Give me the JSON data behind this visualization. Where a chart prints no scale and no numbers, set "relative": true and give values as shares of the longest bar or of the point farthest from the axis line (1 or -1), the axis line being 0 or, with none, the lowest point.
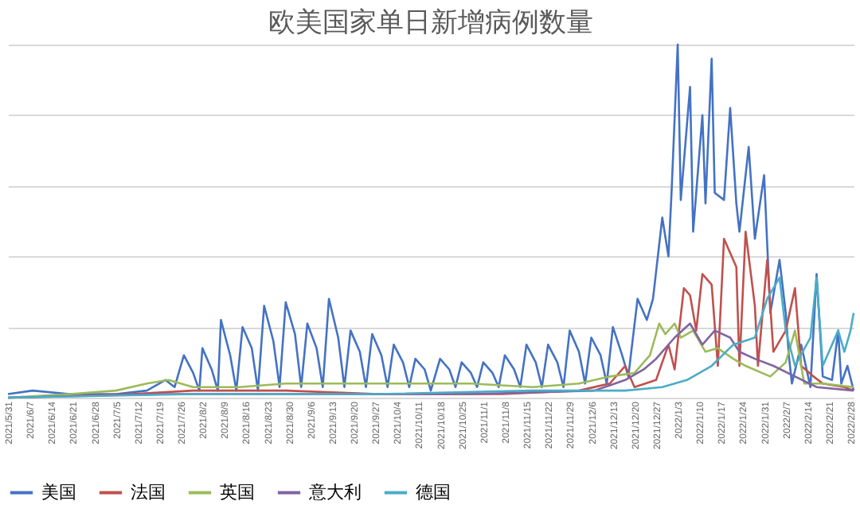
{
  "chart_data": {
    "type": "line",
    "title": "欧美国家单日新增病例数量",
    "relative": true,
    "grid": "y",
    "legend": "bottom",
    "marker": "none",
    "line_style": "solid",
    "xlim": [
      "2021-05-31",
      "2022-03-01"
    ],
    "xticks": [
      {
        "value": "2021-05-31",
        "label": "2021/5/31"
      },
      {
        "value": "2021-06-07",
        "label": "2021/6/7"
      },
      {
        "value": "2021-06-14",
        "label": "2021/6/14"
      },
      {
        "value": "2021-06-21",
        "label": "2021/6/21"
      },
      {
        "value": "2021-06-28",
        "label": "2021/6/28"
      },
      {
        "value": "2021-07-05",
        "label": "2021/7/5"
      },
      {
        "value": "2021-07-12",
        "label": "2021/7/12"
      },
      {
        "value": "2021-07-19",
        "label": "2021/7/19"
      },
      {
        "value": "2021-07-26",
        "label": "2021/7/26"
      },
      {
        "value": "2021-08-02",
        "label": "2021/8/2"
      },
      {
        "value": "2021-08-09",
        "label": "2021/8/9"
      },
      {
        "value": "2021-08-16",
        "label": "2021/8/16"
      },
      {
        "value": "2021-08-23",
        "label": "2021/8/23"
      },
      {
        "value": "2021-08-30",
        "label": "2021/8/30"
      },
      {
        "value": "2021-09-06",
        "label": "2021/9/6"
      },
      {
        "value": "2021-09-13",
        "label": "2021/9/13"
      },
      {
        "value": "2021-09-20",
        "label": "2021/9/20"
      },
      {
        "value": "2021-09-27",
        "label": "2021/9/27"
      },
      {
        "value": "2021-10-04",
        "label": "2021/10/4"
      },
      {
        "value": "2021-10-11",
        "label": "2021/10/11"
      },
      {
        "value": "2021-10-18",
        "label": "2021/10/18"
      },
      {
        "value": "2021-10-25",
        "label": "2021/10/25"
      },
      {
        "value": "2021-11-01",
        "label": "2021/11/1"
      },
      {
        "value": "2021-11-08",
        "label": "2021/11/8"
      },
      {
        "value": "2021-11-15",
        "label": "2021/11/15"
      },
      {
        "value": "2021-11-22",
        "label": "2021/11/22"
      },
      {
        "value": "2021-11-29",
        "label": "2021/11/29"
      },
      {
        "value": "2021-12-06",
        "label": "2021/12/6"
      },
      {
        "value": "2021-12-13",
        "label": "2021/12/13"
      },
      {
        "value": "2021-12-20",
        "label": "2021/12/20"
      },
      {
        "value": "2021-12-27",
        "label": "2021/12/27"
      },
      {
        "value": "2022-01-03",
        "label": "2022/1/3"
      },
      {
        "value": "2022-01-10",
        "label": "2022/1/10"
      },
      {
        "value": "2022-01-17",
        "label": "2022/1/17"
      },
      {
        "value": "2022-01-24",
        "label": "2022/1/24"
      },
      {
        "value": "2022-01-31",
        "label": "2022/1/31"
      },
      {
        "value": "2022-02-07",
        "label": "2022/2/7"
      },
      {
        "value": "2022-02-14",
        "label": "2022/2/14"
      },
      {
        "value": "2022-02-21",
        "label": "2022/2/21"
      },
      {
        "value": "2022-02-28",
        "label": "2022/2/28"
      }
    ],
    "series": [
      {
        "name": "美国",
        "color": "#4472c4",
        "x": [
          "2021-05-31",
          "2021-06-08",
          "2021-06-20",
          "2021-07-05",
          "2021-07-15",
          "2021-07-21",
          "2021-07-24",
          "2021-07-27",
          "2021-07-30",
          "2021-08-01",
          "2021-08-02",
          "2021-08-05",
          "2021-08-07",
          "2021-08-08",
          "2021-08-11",
          "2021-08-13",
          "2021-08-15",
          "2021-08-18",
          "2021-08-20",
          "2021-08-22",
          "2021-08-25",
          "2021-08-27",
          "2021-08-29",
          "2021-09-01",
          "2021-09-03",
          "2021-09-05",
          "2021-09-08",
          "2021-09-10",
          "2021-09-12",
          "2021-09-15",
          "2021-09-17",
          "2021-09-19",
          "2021-09-22",
          "2021-09-24",
          "2021-09-26",
          "2021-09-29",
          "2021-10-01",
          "2021-10-03",
          "2021-10-06",
          "2021-10-08",
          "2021-10-10",
          "2021-10-13",
          "2021-10-15",
          "2021-10-18",
          "2021-10-21",
          "2021-10-23",
          "2021-10-25",
          "2021-10-28",
          "2021-10-30",
          "2021-11-01",
          "2021-11-04",
          "2021-11-06",
          "2021-11-08",
          "2021-11-11",
          "2021-11-13",
          "2021-11-15",
          "2021-11-18",
          "2021-11-20",
          "2021-11-22",
          "2021-11-25",
          "2021-11-27",
          "2021-11-29",
          "2021-12-02",
          "2021-12-04",
          "2021-12-06",
          "2021-12-09",
          "2021-12-11",
          "2021-12-13",
          "2021-12-16",
          "2021-12-18",
          "2021-12-21",
          "2021-12-24",
          "2021-12-26",
          "2021-12-29",
          "2021-12-31",
          "2022-01-01",
          "2022-01-03",
          "2022-01-04",
          "2022-01-07",
          "2022-01-08",
          "2022-01-11",
          "2022-01-12",
          "2022-01-14",
          "2022-01-15",
          "2022-01-18",
          "2022-01-20",
          "2022-01-22",
          "2022-01-23",
          "2022-01-26",
          "2022-01-28",
          "2022-01-31",
          "2022-02-02",
          "2022-02-05",
          "2022-02-07",
          "2022-02-08",
          "2022-02-09",
          "2022-02-12",
          "2022-02-15",
          "2022-02-17",
          "2022-02-19",
          "2022-02-22",
          "2022-02-24",
          "2022-02-25",
          "2022-02-27",
          "2022-03-01"
        ],
        "values": [
          0.01,
          0.02,
          0.01,
          0.01,
          0.02,
          0.05,
          0.03,
          0.12,
          0.07,
          0.02,
          0.14,
          0.08,
          0.02,
          0.22,
          0.12,
          0.02,
          0.2,
          0.14,
          0.02,
          0.26,
          0.16,
          0.03,
          0.27,
          0.18,
          0.03,
          0.21,
          0.14,
          0.03,
          0.28,
          0.17,
          0.03,
          0.19,
          0.13,
          0.03,
          0.18,
          0.12,
          0.03,
          0.15,
          0.1,
          0.03,
          0.11,
          0.08,
          0.02,
          0.11,
          0.08,
          0.03,
          0.1,
          0.07,
          0.03,
          0.1,
          0.07,
          0.03,
          0.12,
          0.08,
          0.03,
          0.15,
          0.1,
          0.03,
          0.15,
          0.1,
          0.03,
          0.19,
          0.13,
          0.04,
          0.17,
          0.12,
          0.04,
          0.2,
          0.12,
          0.06,
          0.28,
          0.22,
          0.28,
          0.51,
          0.4,
          0.58,
          1.0,
          0.56,
          0.88,
          0.47,
          0.8,
          0.55,
          0.96,
          0.58,
          0.56,
          0.82,
          0.55,
          0.47,
          0.71,
          0.45,
          0.63,
          0.24,
          0.39,
          0.24,
          0.12,
          0.04,
          0.15,
          0.03,
          0.35,
          0.06,
          0.05,
          0.19,
          0.04,
          0.09,
          0.02
        ]
      },
      {
        "name": "法国",
        "color": "#c0504d",
        "x": [
          "2021-05-31",
          "2021-07-10",
          "2021-07-30",
          "2021-08-29",
          "2021-09-28",
          "2021-11-07",
          "2021-12-02",
          "2021-12-12",
          "2021-12-17",
          "2021-12-20",
          "2021-12-27",
          "2021-12-31",
          "2022-01-02",
          "2022-01-05",
          "2022-01-07",
          "2022-01-09",
          "2022-01-11",
          "2022-01-14",
          "2022-01-16",
          "2022-01-18",
          "2022-01-22",
          "2022-01-23",
          "2022-01-25",
          "2022-01-28",
          "2022-01-29",
          "2022-02-01",
          "2022-02-03",
          "2022-02-07",
          "2022-02-10",
          "2022-02-12",
          "2022-02-16",
          "2022-02-19",
          "2022-02-26",
          "2022-03-01"
        ],
        "values": [
          0.0,
          0.01,
          0.02,
          0.02,
          0.01,
          0.01,
          0.02,
          0.04,
          0.09,
          0.03,
          0.05,
          0.15,
          0.08,
          0.31,
          0.29,
          0.19,
          0.35,
          0.32,
          0.09,
          0.45,
          0.37,
          0.09,
          0.47,
          0.26,
          0.09,
          0.39,
          0.13,
          0.19,
          0.31,
          0.09,
          0.06,
          0.04,
          0.03,
          0.02
        ]
      },
      {
        "name": "英国",
        "color": "#9bbb59",
        "x": [
          "2021-05-31",
          "2021-06-20",
          "2021-07-05",
          "2021-07-15",
          "2021-07-22",
          "2021-07-30",
          "2021-08-14",
          "2021-08-29",
          "2021-09-18",
          "2021-10-08",
          "2021-10-28",
          "2021-11-17",
          "2021-12-02",
          "2021-12-12",
          "2021-12-20",
          "2021-12-25",
          "2021-12-28",
          "2021-12-30",
          "2022-01-02",
          "2022-01-04",
          "2022-01-08",
          "2022-01-12",
          "2022-01-16",
          "2022-01-21",
          "2022-01-25",
          "2022-02-02",
          "2022-02-07",
          "2022-02-10",
          "2022-02-13",
          "2022-02-19",
          "2022-03-01"
        ],
        "values": [
          0.0,
          0.01,
          0.02,
          0.04,
          0.05,
          0.03,
          0.03,
          0.04,
          0.04,
          0.04,
          0.04,
          0.03,
          0.04,
          0.06,
          0.07,
          0.12,
          0.21,
          0.18,
          0.21,
          0.17,
          0.19,
          0.13,
          0.14,
          0.11,
          0.09,
          0.06,
          0.1,
          0.19,
          0.04,
          0.04,
          0.03
        ]
      },
      {
        "name": "意大利",
        "color": "#8064a2",
        "x": [
          "2021-05-31",
          "2021-07-20",
          "2021-09-08",
          "2021-10-28",
          "2021-12-07",
          "2021-12-17",
          "2021-12-23",
          "2021-12-27",
          "2022-01-02",
          "2022-01-07",
          "2022-01-11",
          "2022-01-15",
          "2022-01-20",
          "2022-01-23",
          "2022-01-28",
          "2022-02-03",
          "2022-02-10",
          "2022-02-17",
          "2022-03-01"
        ],
        "values": [
          0.0,
          0.01,
          0.01,
          0.01,
          0.02,
          0.05,
          0.08,
          0.11,
          0.17,
          0.21,
          0.15,
          0.19,
          0.17,
          0.13,
          0.11,
          0.09,
          0.06,
          0.03,
          0.02
        ]
      },
      {
        "name": "德国",
        "color": "#4bacc6",
        "x": [
          "2021-05-31",
          "2021-07-30",
          "2021-09-28",
          "2021-11-17",
          "2021-12-17",
          "2021-12-29",
          "2022-01-06",
          "2022-01-14",
          "2022-01-21",
          "2022-01-28",
          "2022-02-01",
          "2022-02-05",
          "2022-02-07",
          "2022-02-10",
          "2022-02-15",
          "2022-02-17",
          "2022-02-19",
          "2022-02-24",
          "2022-02-26",
          "2022-02-28",
          "2022-03-01"
        ],
        "values": [
          0.0,
          0.01,
          0.01,
          0.02,
          0.02,
          0.03,
          0.05,
          0.09,
          0.15,
          0.17,
          0.28,
          0.34,
          0.19,
          0.09,
          0.17,
          0.34,
          0.09,
          0.19,
          0.13,
          0.19,
          0.24
        ]
      }
    ]
  }
}
